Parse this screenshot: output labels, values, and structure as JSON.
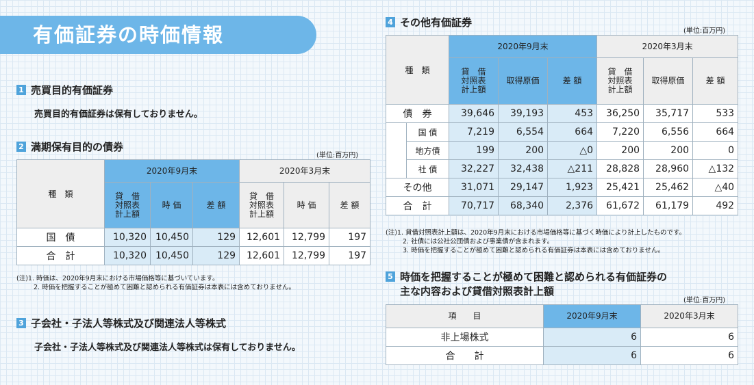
{
  "title": "有価証券の時価情報",
  "sec1": {
    "num": "1",
    "heading": "売買目的有価証券",
    "text": "売買目的有価証券は保有しておりません。"
  },
  "sec2": {
    "num": "2",
    "heading": "満期保有目的の債券",
    "unit": "(単位:百万円)",
    "col_type": "種　類",
    "period1": "2020年9月末",
    "period2": "2020年3月末",
    "col_book": "貸　借\n対照表\n計上額",
    "col_fair": "時 価",
    "col_diff": "差 額",
    "rows": [
      {
        "label": "国　債",
        "v": [
          "10,320",
          "10,450",
          "129",
          "12,601",
          "12,799",
          "197"
        ]
      },
      {
        "label": "合　計",
        "v": [
          "10,320",
          "10,450",
          "129",
          "12,601",
          "12,799",
          "197"
        ]
      }
    ],
    "notes": [
      "(注)1. 時価は、2020年9月末における市場価格等に基づいています。",
      "2. 時価を把握することが極めて困難と認められる有価証券は本表には含めておりません。"
    ]
  },
  "sec3": {
    "num": "3",
    "heading": "子会社・子法人等株式及び関連法人等株式",
    "text": "子会社・子法人等株式及び関連法人等株式は保有しておりません。"
  },
  "sec4": {
    "num": "4",
    "heading": "その他有価証券",
    "unit": "(単位:百万円)",
    "col_type": "種　類",
    "period1": "2020年9月末",
    "period2": "2020年3月末",
    "col_book": "貸　借\n対照表\n計上額",
    "col_cost": "取得原価",
    "col_diff": "差 額",
    "rows": [
      {
        "label": "債　券",
        "v": [
          "39,646",
          "39,193",
          "453",
          "36,250",
          "35,717",
          "533"
        ]
      },
      {
        "label": "国 債",
        "v": [
          "7,219",
          "6,554",
          "664",
          "7,220",
          "6,556",
          "664"
        ]
      },
      {
        "label": "地方債",
        "v": [
          "199",
          "200",
          "△0",
          "200",
          "200",
          "0"
        ]
      },
      {
        "label": "社 債",
        "v": [
          "32,227",
          "32,438",
          "△211",
          "28,828",
          "28,960",
          "△132"
        ]
      },
      {
        "label": "その他",
        "v": [
          "31,071",
          "29,147",
          "1,923",
          "25,421",
          "25,462",
          "△40"
        ]
      },
      {
        "label": "合　計",
        "v": [
          "70,717",
          "68,340",
          "2,376",
          "61,672",
          "61,179",
          "492"
        ]
      }
    ],
    "notes": [
      "(注)1. 貸借対照表計上額は、2020年9月末における市場価格等に基づく時価により計上したものです。",
      "2. 社債には公社公団債および事業債が含まれます。",
      "3. 時価を把握することが極めて困難と認められる有価証券は本表には含めておりません。"
    ]
  },
  "sec5": {
    "num": "5",
    "heading1": "時価を把握することが極めて困難と認められる有価証券の",
    "heading2": "主な内容および貸借対照表計上額",
    "unit": "(単位:百万円)",
    "col_item": "項　　目",
    "period1": "2020年9月末",
    "period2": "2020年3月末",
    "rows": [
      {
        "label": "非上場株式",
        "v": [
          "6",
          "6"
        ]
      },
      {
        "label": "合　　計",
        "v": [
          "6",
          "6"
        ]
      }
    ]
  }
}
